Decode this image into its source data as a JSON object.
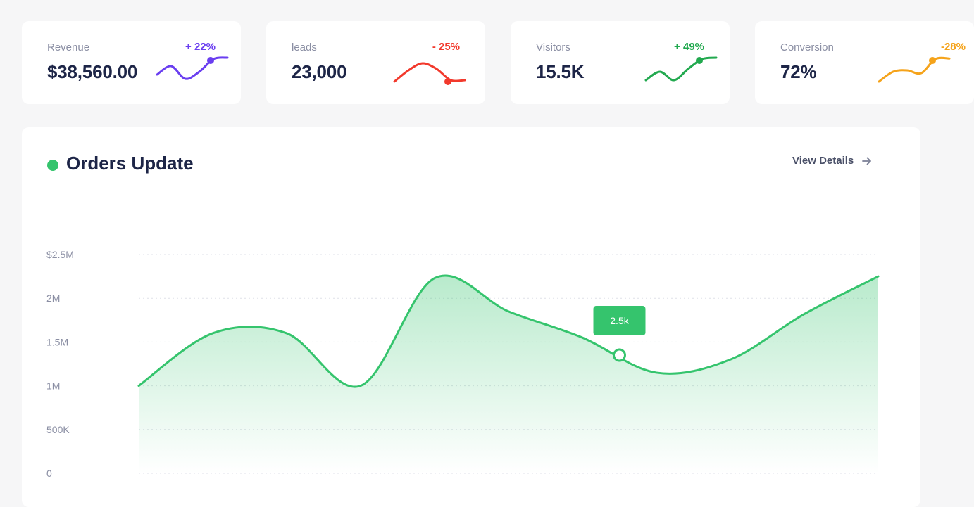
{
  "stats": [
    {
      "label": "Revenue",
      "value": "$38,560.00",
      "delta": "+ 22%",
      "color": "#6a3ef0",
      "spark": [
        0.35,
        0.65,
        0.2,
        0.45,
        0.9,
        0.95
      ],
      "spark_marker": 4
    },
    {
      "label": "leads",
      "value": "23,000",
      "delta": "- 25%",
      "color": "#f2392c",
      "spark": [
        0.1,
        0.5,
        0.75,
        0.55,
        0.15,
        0.15
      ],
      "spark_marker": 4
    },
    {
      "label": "Visitors",
      "value": "15.5K",
      "delta": "+ 49%",
      "color": "#22a94f",
      "spark": [
        0.15,
        0.45,
        0.15,
        0.55,
        0.9,
        0.95
      ],
      "spark_marker": 4
    },
    {
      "label": "Conversion",
      "value": "72%",
      "delta": "-28%",
      "color": "#f5a31a",
      "spark": [
        0.1,
        0.45,
        0.5,
        0.4,
        0.9,
        0.92
      ],
      "spark_marker": 4
    }
  ],
  "orders": {
    "title": "Orders Update",
    "view_details": "View Details",
    "accent": "#35c46d",
    "tooltip": "2.5k"
  },
  "chart_data": {
    "type": "area",
    "title": "Orders Update",
    "xlabel": "",
    "ylabel": "",
    "ylim": [
      0,
      2500000
    ],
    "yticks": [
      "$2.5M",
      "2M",
      "1.5M",
      "1M",
      "500K",
      "0"
    ],
    "ytick_values": [
      2500000,
      2000000,
      1500000,
      1000000,
      500000,
      0
    ],
    "grid": true,
    "series": [
      {
        "x": [
          0,
          1,
          2,
          3,
          4,
          5,
          6,
          7,
          8,
          9,
          10
        ],
        "values": [
          1000000,
          1600000,
          1600000,
          1000000,
          2230000,
          1850000,
          1550000,
          1150000,
          1300000,
          1820000,
          2250000
        ]
      }
    ],
    "highlight": {
      "index": 6.5,
      "label": "2.5k",
      "value": 1350000
    }
  }
}
